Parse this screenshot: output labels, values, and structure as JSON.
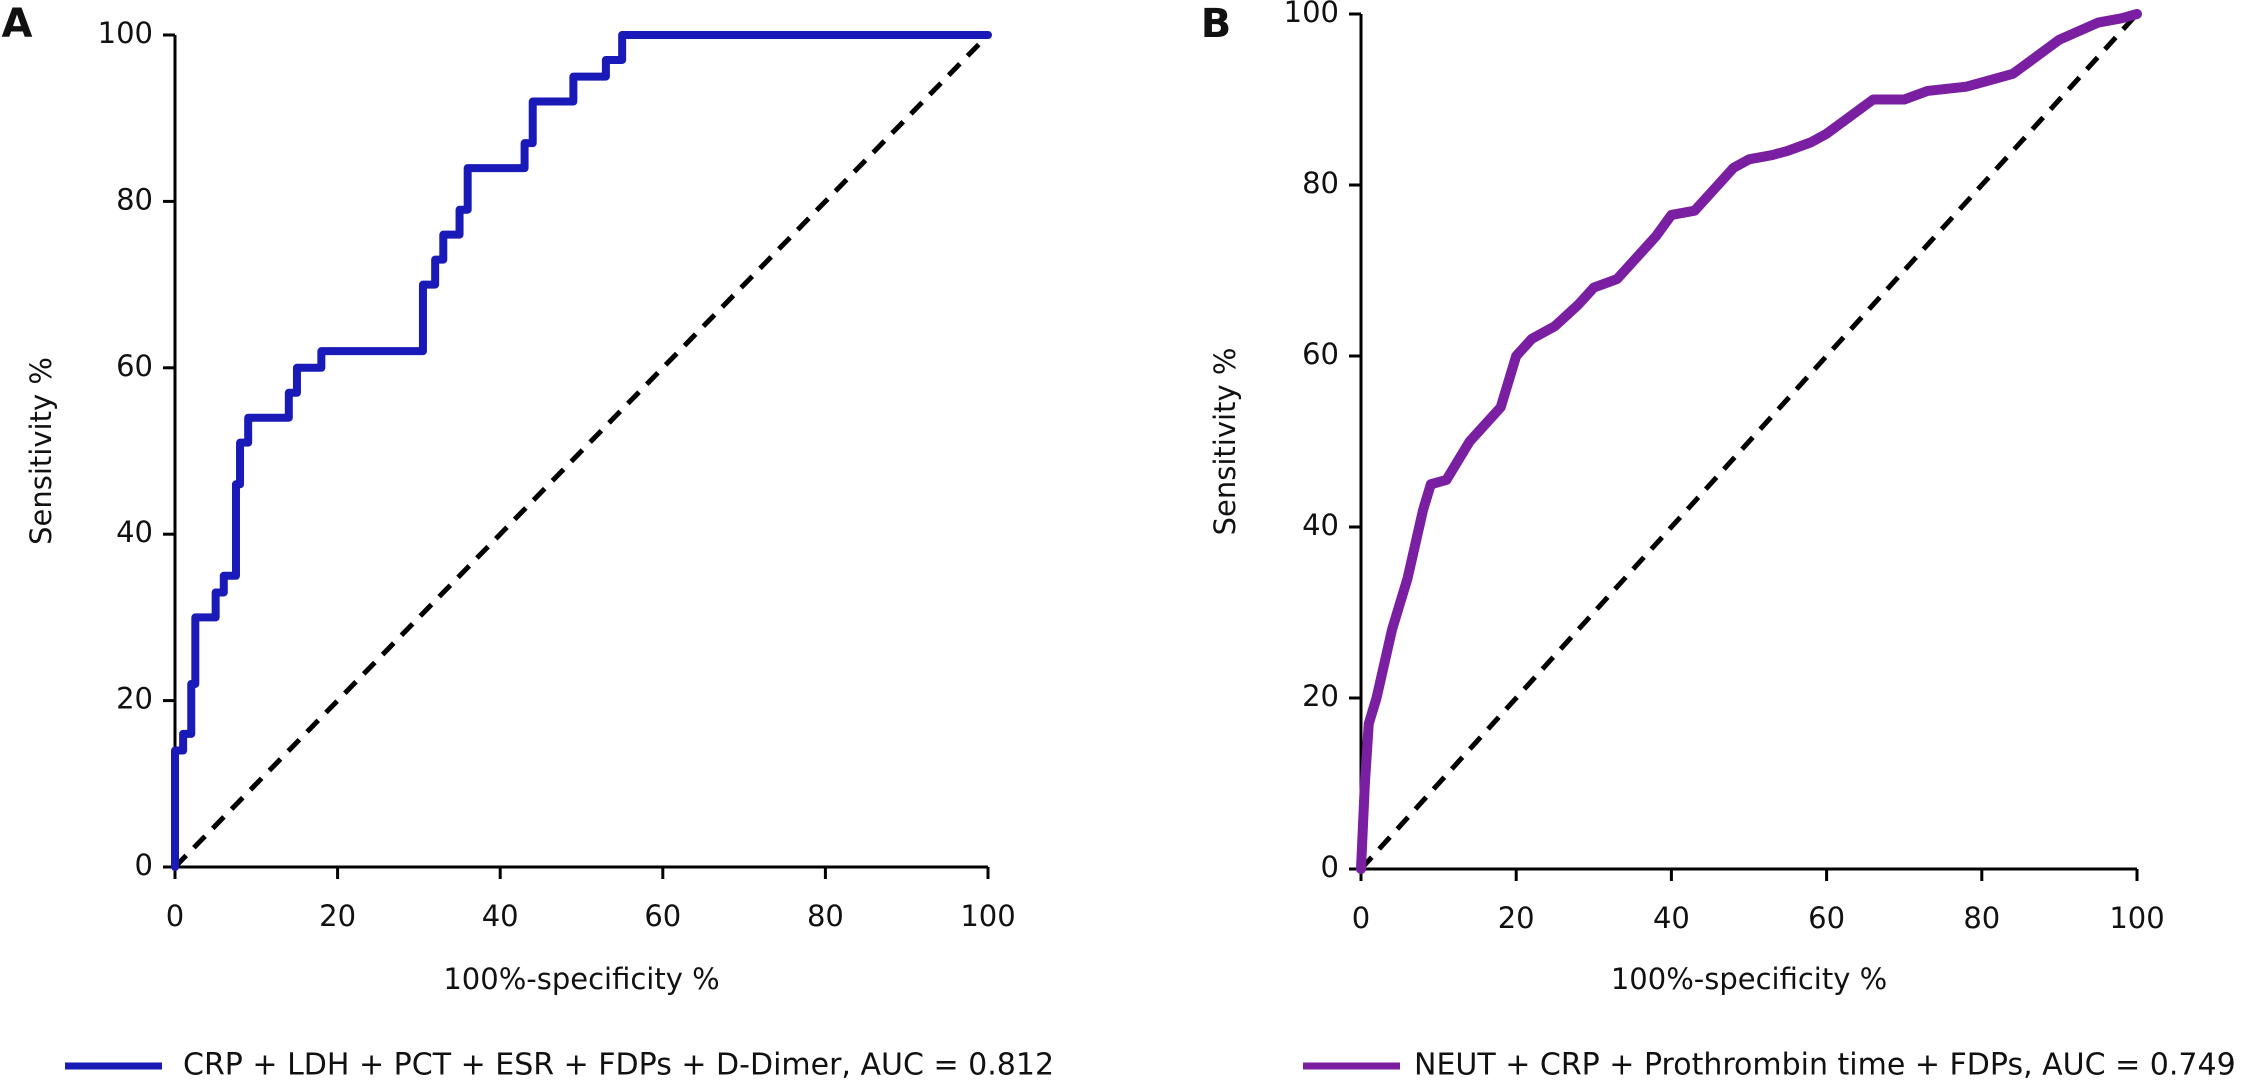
{
  "chart_data": [
    {
      "type": "line",
      "panel_label": "A",
      "xlabel": "100%-specificity %",
      "ylabel": "Sensitivity %",
      "xlim": [
        0,
        100
      ],
      "ylim": [
        0,
        100
      ],
      "xticks": [
        0,
        20,
        40,
        60,
        80,
        100
      ],
      "yticks": [
        0,
        20,
        40,
        60,
        80,
        100
      ],
      "series": [
        {
          "name": "CRP + LDH + PCT + ESR + FDPs + D-Dimer, AUC = 0.812",
          "color": "#1a1ab8",
          "x": [
            0,
            0,
            1,
            1,
            2,
            2,
            2.5,
            2.5,
            5,
            5,
            6,
            6,
            7.5,
            7.5,
            8,
            8,
            9,
            9,
            14,
            14,
            15,
            15,
            18,
            18,
            30.5,
            30.5,
            32,
            32,
            33,
            33,
            35,
            35,
            36,
            36,
            43,
            43,
            44,
            44,
            49,
            49,
            53,
            53,
            55,
            55,
            100
          ],
          "values": [
            0,
            14,
            14,
            16,
            16,
            22,
            22,
            30,
            30,
            33,
            33,
            35,
            35,
            46,
            46,
            51,
            51,
            54,
            54,
            57,
            57,
            60,
            60,
            62,
            62,
            70,
            70,
            73,
            73,
            76,
            76,
            79,
            79,
            84,
            84,
            87,
            87,
            92,
            92,
            95,
            95,
            97,
            97,
            100,
            100
          ]
        }
      ]
    },
    {
      "type": "line",
      "panel_label": "B",
      "xlabel": "100%-specificity %",
      "ylabel": "Sensitivity %",
      "xlim": [
        0,
        100
      ],
      "ylim": [
        0,
        100
      ],
      "xticks": [
        0,
        20,
        40,
        60,
        80,
        100
      ],
      "yticks": [
        0,
        20,
        40,
        60,
        80,
        100
      ],
      "series": [
        {
          "name": "NEUT + CRP + Prothrombin time + FDPs, AUC = 0.749",
          "color": "#7a1fa2",
          "x": [
            0,
            0.5,
            1,
            2,
            3,
            4,
            5,
            6,
            7,
            8,
            9,
            11,
            12,
            14,
            16,
            18,
            19,
            20,
            22,
            25,
            28,
            30,
            33,
            35,
            38,
            40,
            43,
            45,
            48,
            50,
            53,
            55,
            58,
            60,
            63,
            66,
            70,
            73,
            78,
            80,
            84,
            87,
            90,
            95,
            98,
            100
          ],
          "values": [
            0,
            10,
            17,
            20,
            24,
            28,
            31,
            34,
            38,
            42,
            45,
            45.5,
            47,
            50,
            52,
            54,
            57,
            60,
            62,
            63.5,
            66,
            68,
            69,
            71,
            74,
            76.5,
            77,
            79,
            82,
            83,
            83.5,
            84,
            85,
            86,
            88,
            90,
            90,
            91,
            91.5,
            92,
            93,
            95,
            97,
            99,
            99.5,
            100
          ]
        }
      ]
    }
  ]
}
